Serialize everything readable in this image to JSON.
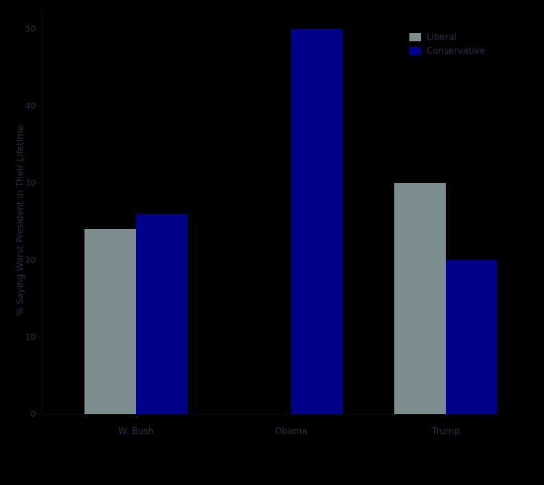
{
  "page": {
    "background": "#000000",
    "text_color": "#2b2b4a",
    "axis_color": "#0d0d0d"
  },
  "chart_data": {
    "type": "bar",
    "title": "",
    "categories": [
      "W. Bush",
      "Obama",
      "Trump"
    ],
    "series": [
      {
        "name": "Liberal",
        "color": "#7d8c8f",
        "values": [
          24,
          0,
          30
        ]
      },
      {
        "name": "Conservative",
        "color": "#00008b",
        "values": [
          26,
          50,
          20
        ]
      }
    ],
    "xlabel": "",
    "ylabel": "% Saying Worst President in Their Lifetime",
    "ylim": [
      0,
      50
    ],
    "yticks": [
      0,
      10,
      20,
      30,
      40,
      50
    ],
    "grid": false,
    "legend_position": "upper right"
  }
}
